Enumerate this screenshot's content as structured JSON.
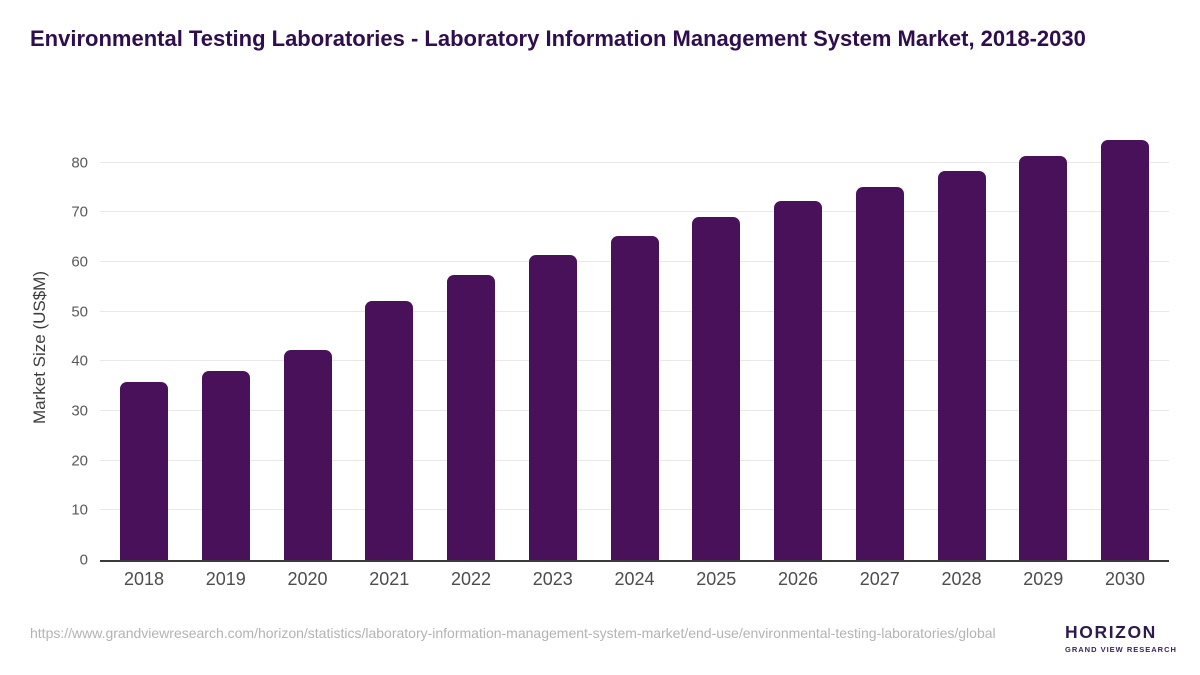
{
  "chart_data": {
    "type": "bar",
    "title": "Environmental Testing Laboratories - Laboratory Information Management System Market, 2018-2030",
    "categories": [
      "2018",
      "2019",
      "2020",
      "2021",
      "2022",
      "2023",
      "2024",
      "2025",
      "2026",
      "2027",
      "2028",
      "2029",
      "2030"
    ],
    "values": [
      35.8,
      38.0,
      42.3,
      52.1,
      57.5,
      61.4,
      65.2,
      69.0,
      72.3,
      75.1,
      78.3,
      81.3,
      84.5
    ],
    "xlabel": "",
    "ylabel": "Market Size (US$M)",
    "y_ticks": [
      0,
      10,
      20,
      30,
      40,
      50,
      60,
      70,
      80
    ],
    "ylim": [
      0,
      85.6
    ],
    "grid": true,
    "legend": "none",
    "bar_color": "#481159",
    "gridline_color": "#e8e8e8",
    "axis_line_color": "#3a3a3a",
    "title_color": "#2f0e4e",
    "tick_label_color": "#595959",
    "x_tick_label_color": "#4d4d4d"
  },
  "footer": {
    "source_url": "https://www.grandviewresearch.com/horizon/statistics/laboratory-information-management-system-market/end-use/environmental-testing-laboratories/global"
  },
  "logo": {
    "brand": "HORIZON",
    "tagline": "GRAND VIEW RESEARCH",
    "icon_top_color": "#2b1b4d",
    "icon_bottom_color": "#58c2ef",
    "text_color": "#2d1b4e"
  }
}
